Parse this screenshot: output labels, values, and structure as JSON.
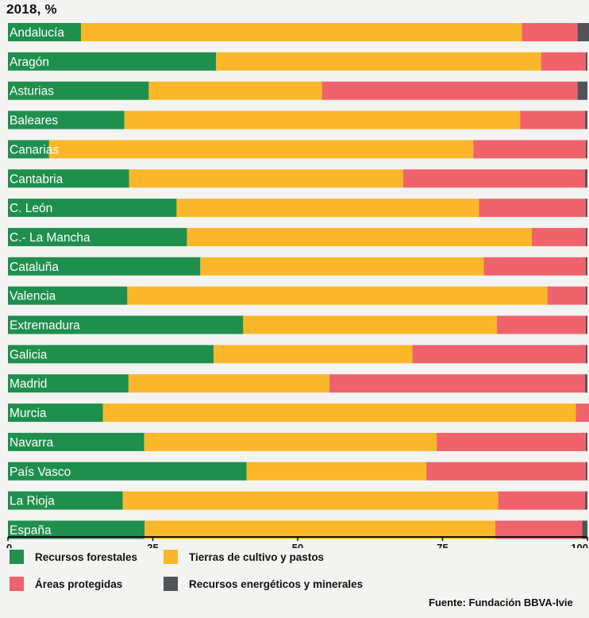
{
  "subtitle": "2018, %",
  "source": "Fuente: Fundación BBVA-Ivie",
  "colors": {
    "forest": "#1f8f4e",
    "crop": "#fbb72a",
    "protected": "#f0636c",
    "energy": "#4d5558",
    "axis": "#111111"
  },
  "chart_data": {
    "type": "bar",
    "orientation": "horizontal",
    "stacked": true,
    "categories": [
      "Andalucía",
      "Aragón",
      "Asturias",
      "Baleares",
      "Canarias",
      "Cantabria",
      "C. León",
      "C.- La Mancha",
      "Cataluña",
      "Valencia",
      "Extremadura",
      "Galicia",
      "Madrid",
      "Murcia",
      "Navarra",
      "País Vasco",
      "La Rioja",
      "España"
    ],
    "series": [
      {
        "name": "Recursos forestales",
        "color_key": "forest",
        "values": [
          12.6,
          35.9,
          24.3,
          20.1,
          7.1,
          20.9,
          29.1,
          30.9,
          33.2,
          20.6,
          40.6,
          35.5,
          20.8,
          16.4,
          23.5,
          41.2,
          19.8,
          23.6
        ]
      },
      {
        "name": "Tierras de cultivo y pastos",
        "color_key": "crop",
        "values": [
          76.1,
          56.1,
          29.9,
          68.3,
          73.2,
          47.3,
          52.2,
          59.5,
          48.9,
          72.5,
          43.8,
          34.3,
          34.7,
          81.6,
          50.5,
          31.0,
          64.8,
          60.5
        ]
      },
      {
        "name": "Áreas protegidas",
        "color_key": "protected",
        "values": [
          9.6,
          7.7,
          44.1,
          11.2,
          19.4,
          31.4,
          18.4,
          9.3,
          17.6,
          6.6,
          15.3,
          29.9,
          44.1,
          2.6,
          25.7,
          27.5,
          15.0,
          15.0
        ]
      },
      {
        "name": "Recursos energéticos y minerales",
        "color_key": "energy",
        "values": [
          2.3,
          0.3,
          1.7,
          0.4,
          0.3,
          0.4,
          0.3,
          0.3,
          0.3,
          0.3,
          0.3,
          0.3,
          0.4,
          0.2,
          0.3,
          0.3,
          0.4,
          0.9
        ]
      }
    ],
    "xlim": [
      0,
      100
    ],
    "xticks": [
      "0",
      "25",
      "50",
      "75",
      "100"
    ],
    "legend_position": "bottom"
  }
}
